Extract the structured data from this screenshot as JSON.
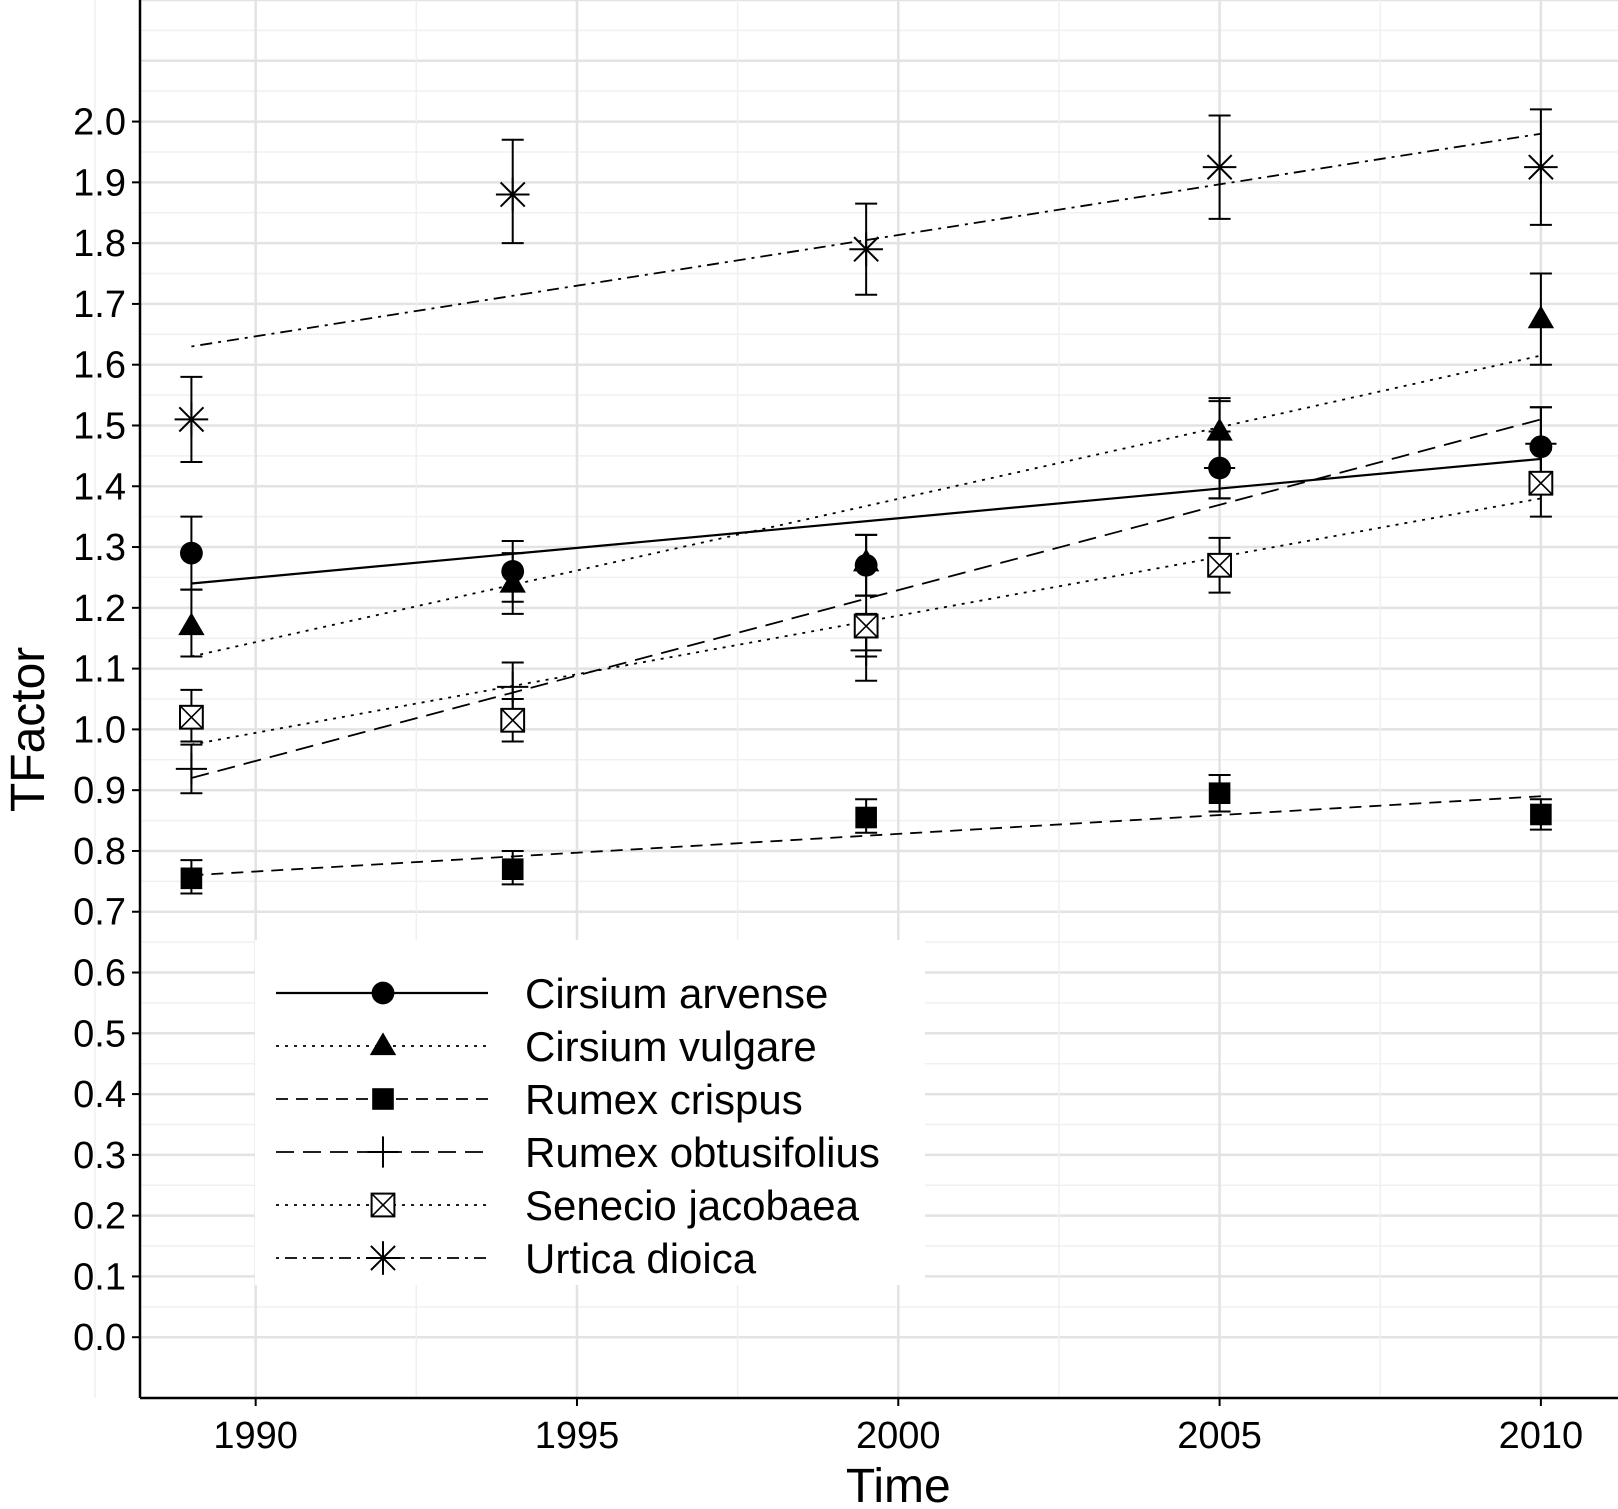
{
  "chart_data": {
    "type": "scatter",
    "title": "",
    "xlabel": "Time",
    "ylabel": "TFactor",
    "xlim": [
      1988.2,
      2011.2
    ],
    "ylim": [
      -0.1,
      2.2
    ],
    "xticks": [
      1990,
      1995,
      2000,
      2005,
      2010
    ],
    "yticks": [
      0.0,
      0.1,
      0.2,
      0.3,
      0.4,
      0.5,
      0.6,
      0.7,
      0.8,
      0.9,
      1.0,
      1.1,
      1.2,
      1.3,
      1.4,
      1.5,
      1.6,
      1.7,
      1.8,
      1.9,
      2.0
    ],
    "ytick_labels": [
      "0.0",
      "0.1",
      "0.2",
      "0.3",
      "0.4",
      "0.5",
      "0.6",
      "0.7",
      "0.8",
      "0.9",
      "1.0",
      "1.1",
      "1.2",
      "1.3",
      "1.4",
      "1.5",
      "1.6",
      "1.7",
      "1.8",
      "1.9",
      "2.0"
    ],
    "grid": true,
    "legend_position": "bottom-left",
    "series": [
      {
        "name": "Cirsium arvense",
        "marker": "circle",
        "line_style": "solid",
        "points": [
          {
            "x": 1989,
            "y": 1.29,
            "low": 1.23,
            "high": 1.35
          },
          {
            "x": 1994,
            "y": 1.26,
            "low": 1.21,
            "high": 1.31
          },
          {
            "x": 1999.5,
            "y": 1.27,
            "low": 1.22,
            "high": 1.32
          },
          {
            "x": 2005,
            "y": 1.43,
            "low": 1.38,
            "high": 1.54
          },
          {
            "x": 2010,
            "y": 1.465,
            "low": 1.4,
            "high": 1.53
          }
        ],
        "trend": [
          [
            1989,
            1.24
          ],
          [
            2010,
            1.445
          ]
        ]
      },
      {
        "name": "Cirsium vulgare",
        "marker": "triangle",
        "line_style": "dotted",
        "points": [
          {
            "x": 1989,
            "y": 1.17,
            "low": 1.12,
            "high": 1.23
          },
          {
            "x": 1994,
            "y": 1.24,
            "low": 1.19,
            "high": 1.29
          },
          {
            "x": 1999.5,
            "y": 1.275,
            "low": 1.22,
            "high": 1.32
          },
          {
            "x": 2005,
            "y": 1.49,
            "low": 1.43,
            "high": 1.545
          },
          {
            "x": 2010,
            "y": 1.675,
            "low": 1.6,
            "high": 1.75
          }
        ],
        "trend": [
          [
            1989,
            1.12
          ],
          [
            2010,
            1.615
          ]
        ]
      },
      {
        "name": "Rumex crispus",
        "marker": "square",
        "line_style": "dashed",
        "points": [
          {
            "x": 1989,
            "y": 0.755,
            "low": 0.73,
            "high": 0.785
          },
          {
            "x": 1994,
            "y": 0.77,
            "low": 0.745,
            "high": 0.8
          },
          {
            "x": 1999.5,
            "y": 0.855,
            "low": 0.83,
            "high": 0.885
          },
          {
            "x": 2005,
            "y": 0.895,
            "low": 0.865,
            "high": 0.925
          },
          {
            "x": 2010,
            "y": 0.86,
            "low": 0.835,
            "high": 0.885
          }
        ],
        "trend": [
          [
            1989,
            0.76
          ],
          [
            2010,
            0.89
          ]
        ]
      },
      {
        "name": "Rumex obtusifolius",
        "marker": "plus",
        "line_style": "longdash",
        "points": [
          {
            "x": 1989,
            "y": 0.935,
            "low": 0.895,
            "high": 0.975
          },
          {
            "x": 1994,
            "y": 1.07,
            "low": 1.03,
            "high": 1.11
          },
          {
            "x": 1999.5,
            "y": 1.13,
            "low": 1.08,
            "high": 1.19
          },
          {
            "x": 2005,
            "y": 1.43,
            "low": 1.38,
            "high": 1.49
          },
          {
            "x": 2010,
            "y": 1.47,
            "low": 1.41,
            "high": 1.53
          }
        ],
        "trend": [
          [
            1989,
            0.92
          ],
          [
            2010,
            1.51
          ]
        ]
      },
      {
        "name": "Senecio jacobaea",
        "marker": "boxed-x",
        "line_style": "dotted",
        "points": [
          {
            "x": 1989,
            "y": 1.02,
            "low": 0.98,
            "high": 1.065
          },
          {
            "x": 1994,
            "y": 1.015,
            "low": 0.98,
            "high": 1.05
          },
          {
            "x": 1999.5,
            "y": 1.17,
            "low": 1.12,
            "high": 1.22
          },
          {
            "x": 2005,
            "y": 1.27,
            "low": 1.225,
            "high": 1.315
          },
          {
            "x": 2010,
            "y": 1.405,
            "low": 1.35,
            "high": 1.46
          }
        ],
        "trend": [
          [
            1989,
            0.975
          ],
          [
            2010,
            1.38
          ]
        ]
      },
      {
        "name": "Urtica dioica",
        "marker": "asterisk",
        "line_style": "dotdash",
        "points": [
          {
            "x": 1989,
            "y": 1.51,
            "low": 1.44,
            "high": 1.58
          },
          {
            "x": 1994,
            "y": 1.88,
            "low": 1.8,
            "high": 1.97
          },
          {
            "x": 1999.5,
            "y": 1.79,
            "low": 1.715,
            "high": 1.865
          },
          {
            "x": 2005,
            "y": 1.925,
            "low": 1.84,
            "high": 2.01
          },
          {
            "x": 2010,
            "y": 1.925,
            "low": 1.83,
            "high": 2.02
          }
        ],
        "trend": [
          [
            1989,
            1.63
          ],
          [
            2010,
            1.98
          ]
        ]
      }
    ]
  }
}
